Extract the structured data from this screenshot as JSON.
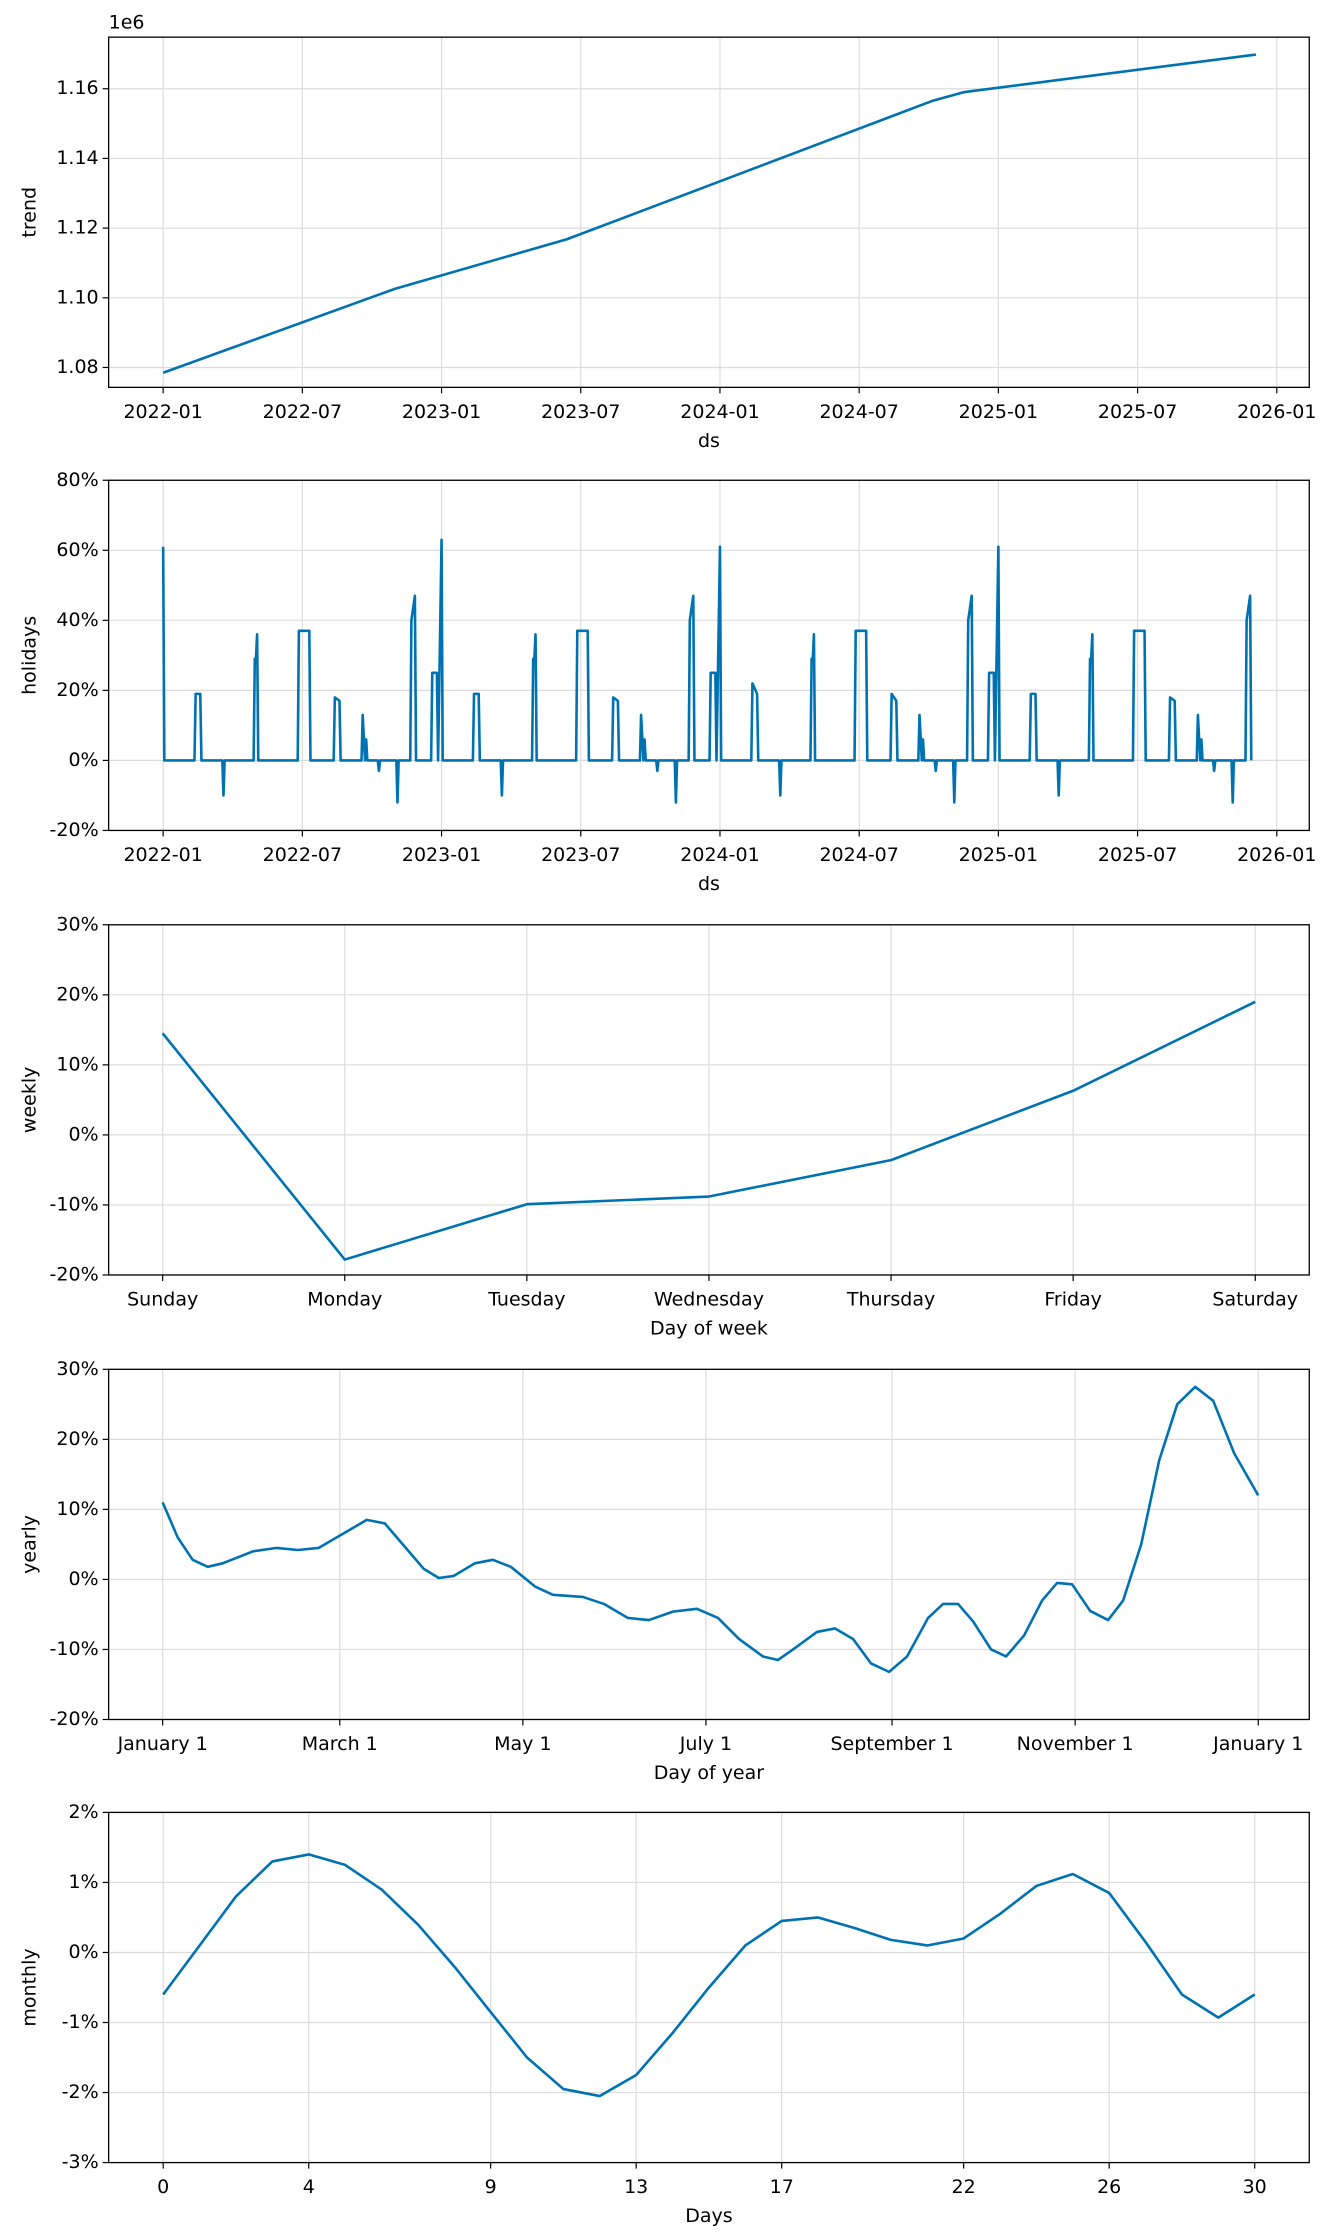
{
  "chart_data": [
    {
      "type": "line",
      "offset_label": "1e6",
      "x_label": "ds",
      "y_label": "trend",
      "xlim": [
        -2.35,
        49.4
      ],
      "xticks": [
        {
          "value": 0,
          "label": "2022-01"
        },
        {
          "value": 6,
          "label": "2022-07"
        },
        {
          "value": 12,
          "label": "2023-01"
        },
        {
          "value": 18,
          "label": "2023-07"
        },
        {
          "value": 24,
          "label": "2024-01"
        },
        {
          "value": 30,
          "label": "2024-07"
        },
        {
          "value": 36,
          "label": "2025-01"
        },
        {
          "value": 42,
          "label": "2025-07"
        },
        {
          "value": 48,
          "label": "2026-01"
        }
      ],
      "ylim": [
        1.0743,
        1.1748
      ],
      "yticks": [
        1.08,
        {
          "value": 1.1,
          "label": "1.10"
        },
        1.12,
        1.14,
        1.16
      ],
      "x": [
        0,
        10,
        17.4,
        33.15,
        34.5,
        47.1
      ],
      "series": [
        {
          "color": "#0072B2",
          "values": [
            1.0785,
            1.1026,
            1.1168,
            1.1565,
            1.159,
            1.1698
          ]
        }
      ],
      "grid": true
    },
    {
      "type": "line",
      "x_label": "ds",
      "y_label": "holidays",
      "xlim": [
        -2.35,
        49.4
      ],
      "xticks": [
        {
          "value": 0,
          "label": "2022-01"
        },
        {
          "value": 6,
          "label": "2022-07"
        },
        {
          "value": 12,
          "label": "2023-01"
        },
        {
          "value": 18,
          "label": "2023-07"
        },
        {
          "value": 24,
          "label": "2024-01"
        },
        {
          "value": 30,
          "label": "2024-07"
        },
        {
          "value": 36,
          "label": "2025-01"
        },
        {
          "value": 42,
          "label": "2025-07"
        },
        {
          "value": 48,
          "label": "2026-01"
        }
      ],
      "ylim": [
        -20,
        80
      ],
      "yticks": [
        {
          "value": -20,
          "label": "-20%"
        },
        {
          "value": 0,
          "label": "0%"
        },
        {
          "value": 20,
          "label": "20%"
        },
        {
          "value": 40,
          "label": "40%"
        },
        {
          "value": 60,
          "label": "60%"
        },
        {
          "value": 80,
          "label": "80%"
        }
      ],
      "x": [
        0,
        0.05,
        1.35,
        1.4,
        1.6,
        1.65,
        2.55,
        2.6,
        2.65,
        3.9,
        3.95,
        4,
        4.05,
        4.1,
        5.8,
        5.85,
        6.3,
        6.35,
        7.35,
        7.4,
        7.6,
        7.65,
        8.55,
        8.6,
        8.7,
        8.75,
        8.8,
        9.25,
        9.3,
        9.35,
        10.05,
        10.1,
        10.15,
        10.65,
        10.7,
        10.85,
        10.9,
        11.55,
        11.6,
        11.8,
        11.85,
        12,
        12.05,
        13.35,
        13.4,
        13.6,
        13.65,
        14.55,
        14.6,
        14.65,
        15.9,
        15.95,
        16,
        16.05,
        16.1,
        17.8,
        17.85,
        18.3,
        18.35,
        19.35,
        19.4,
        19.6,
        19.65,
        20.55,
        20.6,
        20.7,
        20.75,
        20.8,
        21.25,
        21.3,
        21.35,
        22.05,
        22.1,
        22.15,
        22.65,
        22.7,
        22.85,
        22.9,
        23.55,
        23.6,
        23.8,
        23.85,
        24,
        24.05,
        25.35,
        25.4,
        25.6,
        25.65,
        26.55,
        26.6,
        26.65,
        27.9,
        27.95,
        28,
        28.05,
        28.1,
        29.8,
        29.85,
        30.3,
        30.35,
        31.35,
        31.4,
        31.6,
        31.65,
        32.55,
        32.6,
        32.7,
        32.75,
        32.8,
        33.25,
        33.3,
        33.35,
        34.05,
        34.1,
        34.15,
        34.65,
        34.7,
        34.85,
        34.9,
        35.55,
        35.6,
        35.8,
        35.85,
        36,
        36.05,
        37.35,
        37.4,
        37.6,
        37.65,
        38.55,
        38.6,
        38.65,
        39.9,
        39.95,
        40,
        40.05,
        40.1,
        41.8,
        41.85,
        42.3,
        42.35,
        43.35,
        43.4,
        43.6,
        43.65,
        44.55,
        44.6,
        44.7,
        44.75,
        44.8,
        45.25,
        45.3,
        45.35,
        46.05,
        46.1,
        46.15,
        46.65,
        46.7,
        46.85,
        46.9
      ],
      "series": [
        {
          "color": "#0072B2",
          "values": [
            61,
            0,
            0,
            19,
            19,
            0,
            0,
            -10,
            0,
            0,
            29,
            29,
            36,
            0,
            0,
            37,
            37,
            0,
            0,
            18,
            17,
            0,
            0,
            13,
            0,
            6,
            0,
            0,
            -3,
            0,
            0,
            -12,
            0,
            0,
            40,
            47,
            0,
            0,
            25,
            25,
            0,
            63,
            0,
            0,
            19,
            19,
            0,
            0,
            -10,
            0,
            0,
            29,
            29,
            36,
            0,
            0,
            37,
            37,
            0,
            0,
            18,
            17,
            0,
            0,
            13,
            0,
            6,
            0,
            0,
            -3,
            0,
            0,
            -12,
            0,
            0,
            40,
            47,
            0,
            0,
            25,
            25,
            0,
            61,
            0,
            0,
            22,
            19,
            0,
            0,
            -10,
            0,
            0,
            29,
            29,
            36,
            0,
            0,
            37,
            37,
            0,
            0,
            19,
            17,
            0,
            0,
            13,
            0,
            6,
            0,
            0,
            -3,
            0,
            0,
            -12,
            0,
            0,
            40,
            47,
            0,
            0,
            25,
            25,
            0,
            61,
            0,
            0,
            19,
            19,
            0,
            0,
            -10,
            0,
            0,
            29,
            29,
            36,
            0,
            0,
            37,
            37,
            0,
            0,
            18,
            17,
            0,
            0,
            13,
            0,
            6,
            0,
            0,
            -3,
            0,
            0,
            -12,
            0,
            0,
            40,
            47,
            0
          ]
        }
      ],
      "grid": true
    },
    {
      "type": "line",
      "x_label": "Day of week",
      "y_label": "weekly",
      "categories": [
        "Sunday",
        "Monday",
        "Tuesday",
        "Wednesday",
        "Thursday",
        "Friday",
        "Saturday"
      ],
      "ylim": [
        -20,
        30
      ],
      "yticks": [
        {
          "value": -20,
          "label": "-20%"
        },
        {
          "value": -10,
          "label": "-10%"
        },
        {
          "value": 0,
          "label": "0%"
        },
        {
          "value": 10,
          "label": "10%"
        },
        {
          "value": 20,
          "label": "20%"
        },
        {
          "value": 30,
          "label": "30%"
        }
      ],
      "series": [
        {
          "color": "#0072B2",
          "values": [
            14.5,
            -17.8,
            -9.9,
            -8.8,
            -3.6,
            6.3,
            19
          ]
        }
      ],
      "grid": true
    },
    {
      "type": "line",
      "x_label": "Day of year",
      "y_label": "yearly",
      "xlim": [
        -18,
        382
      ],
      "xticks": [
        {
          "value": 0,
          "label": "January 1"
        },
        {
          "value": 59,
          "label": "March 1"
        },
        {
          "value": 120,
          "label": "May 1"
        },
        {
          "value": 181,
          "label": "July 1"
        },
        {
          "value": 243,
          "label": "September 1"
        },
        {
          "value": 304,
          "label": "November 1"
        },
        {
          "value": 365,
          "label": "January 1"
        }
      ],
      "ylim": [
        -20,
        30
      ],
      "yticks": [
        {
          "value": -20,
          "label": "-20%"
        },
        {
          "value": -10,
          "label": "-10%"
        },
        {
          "value": 0,
          "label": "0%"
        },
        {
          "value": 10,
          "label": "10%"
        },
        {
          "value": 20,
          "label": "20%"
        },
        {
          "value": 30,
          "label": "30%"
        }
      ],
      "x": [
        0,
        5,
        10,
        15,
        20,
        30,
        38,
        45,
        52,
        60,
        68,
        74,
        80,
        87,
        92,
        97,
        104,
        110,
        116,
        124,
        130,
        140,
        147,
        155,
        162,
        170,
        178,
        185,
        192,
        200,
        205,
        210,
        218,
        224,
        230,
        236,
        242,
        248,
        255,
        260,
        265,
        270,
        276,
        281,
        287,
        293,
        298,
        303,
        309,
        315,
        320,
        326,
        332,
        338,
        344,
        350,
        357,
        365
      ],
      "series": [
        {
          "color": "#0072B2",
          "values": [
            11,
            6,
            2.8,
            1.8,
            2.3,
            4,
            4.5,
            4.2,
            4.5,
            6.5,
            8.5,
            8,
            5,
            1.5,
            0.2,
            0.5,
            2.3,
            2.8,
            1.8,
            -1,
            -2.2,
            -2.5,
            -3.5,
            -5.5,
            -5.8,
            -4.6,
            -4.2,
            -5.5,
            -8.5,
            -11,
            -11.5,
            -10,
            -7.5,
            -7,
            -8.5,
            -12,
            -13.2,
            -11,
            -5.5,
            -3.5,
            -3.5,
            -6,
            -10,
            -11,
            -8,
            -3,
            -0.5,
            -0.7,
            -4.5,
            -5.8,
            -3,
            5,
            17,
            25,
            27.5,
            25.5,
            18,
            12
          ]
        }
      ],
      "grid": true
    },
    {
      "type": "line",
      "x_label": "Days",
      "y_label": "monthly",
      "xlim": [
        -1.5,
        31.5
      ],
      "xticks": [
        0,
        4,
        9,
        13,
        17,
        22,
        26,
        30
      ],
      "ylim": [
        -3,
        2
      ],
      "yticks": [
        {
          "value": -3,
          "label": "-3%"
        },
        {
          "value": -2,
          "label": "-2%"
        },
        {
          "value": -1,
          "label": "-1%"
        },
        {
          "value": 0,
          "label": "0%"
        },
        {
          "value": 1,
          "label": "1%"
        },
        {
          "value": 2,
          "label": "2%"
        }
      ],
      "x": [
        0,
        1,
        2,
        3,
        4,
        5,
        6,
        7,
        8,
        9,
        10,
        11,
        12,
        13,
        14,
        15,
        16,
        17,
        18,
        19,
        20,
        21,
        22,
        23,
        24,
        25,
        26,
        27,
        28,
        29,
        30
      ],
      "series": [
        {
          "color": "#0072B2",
          "values": [
            -0.6,
            0.1,
            0.8,
            1.3,
            1.4,
            1.25,
            0.9,
            0.4,
            -0.2,
            -0.85,
            -1.5,
            -1.95,
            -2.05,
            -1.75,
            -1.15,
            -0.5,
            0.1,
            0.45,
            0.5,
            0.35,
            0.18,
            0.1,
            0.2,
            0.55,
            0.95,
            1.12,
            0.85,
            0.15,
            -0.6,
            -0.93,
            -0.6
          ]
        }
      ],
      "grid": true
    }
  ]
}
